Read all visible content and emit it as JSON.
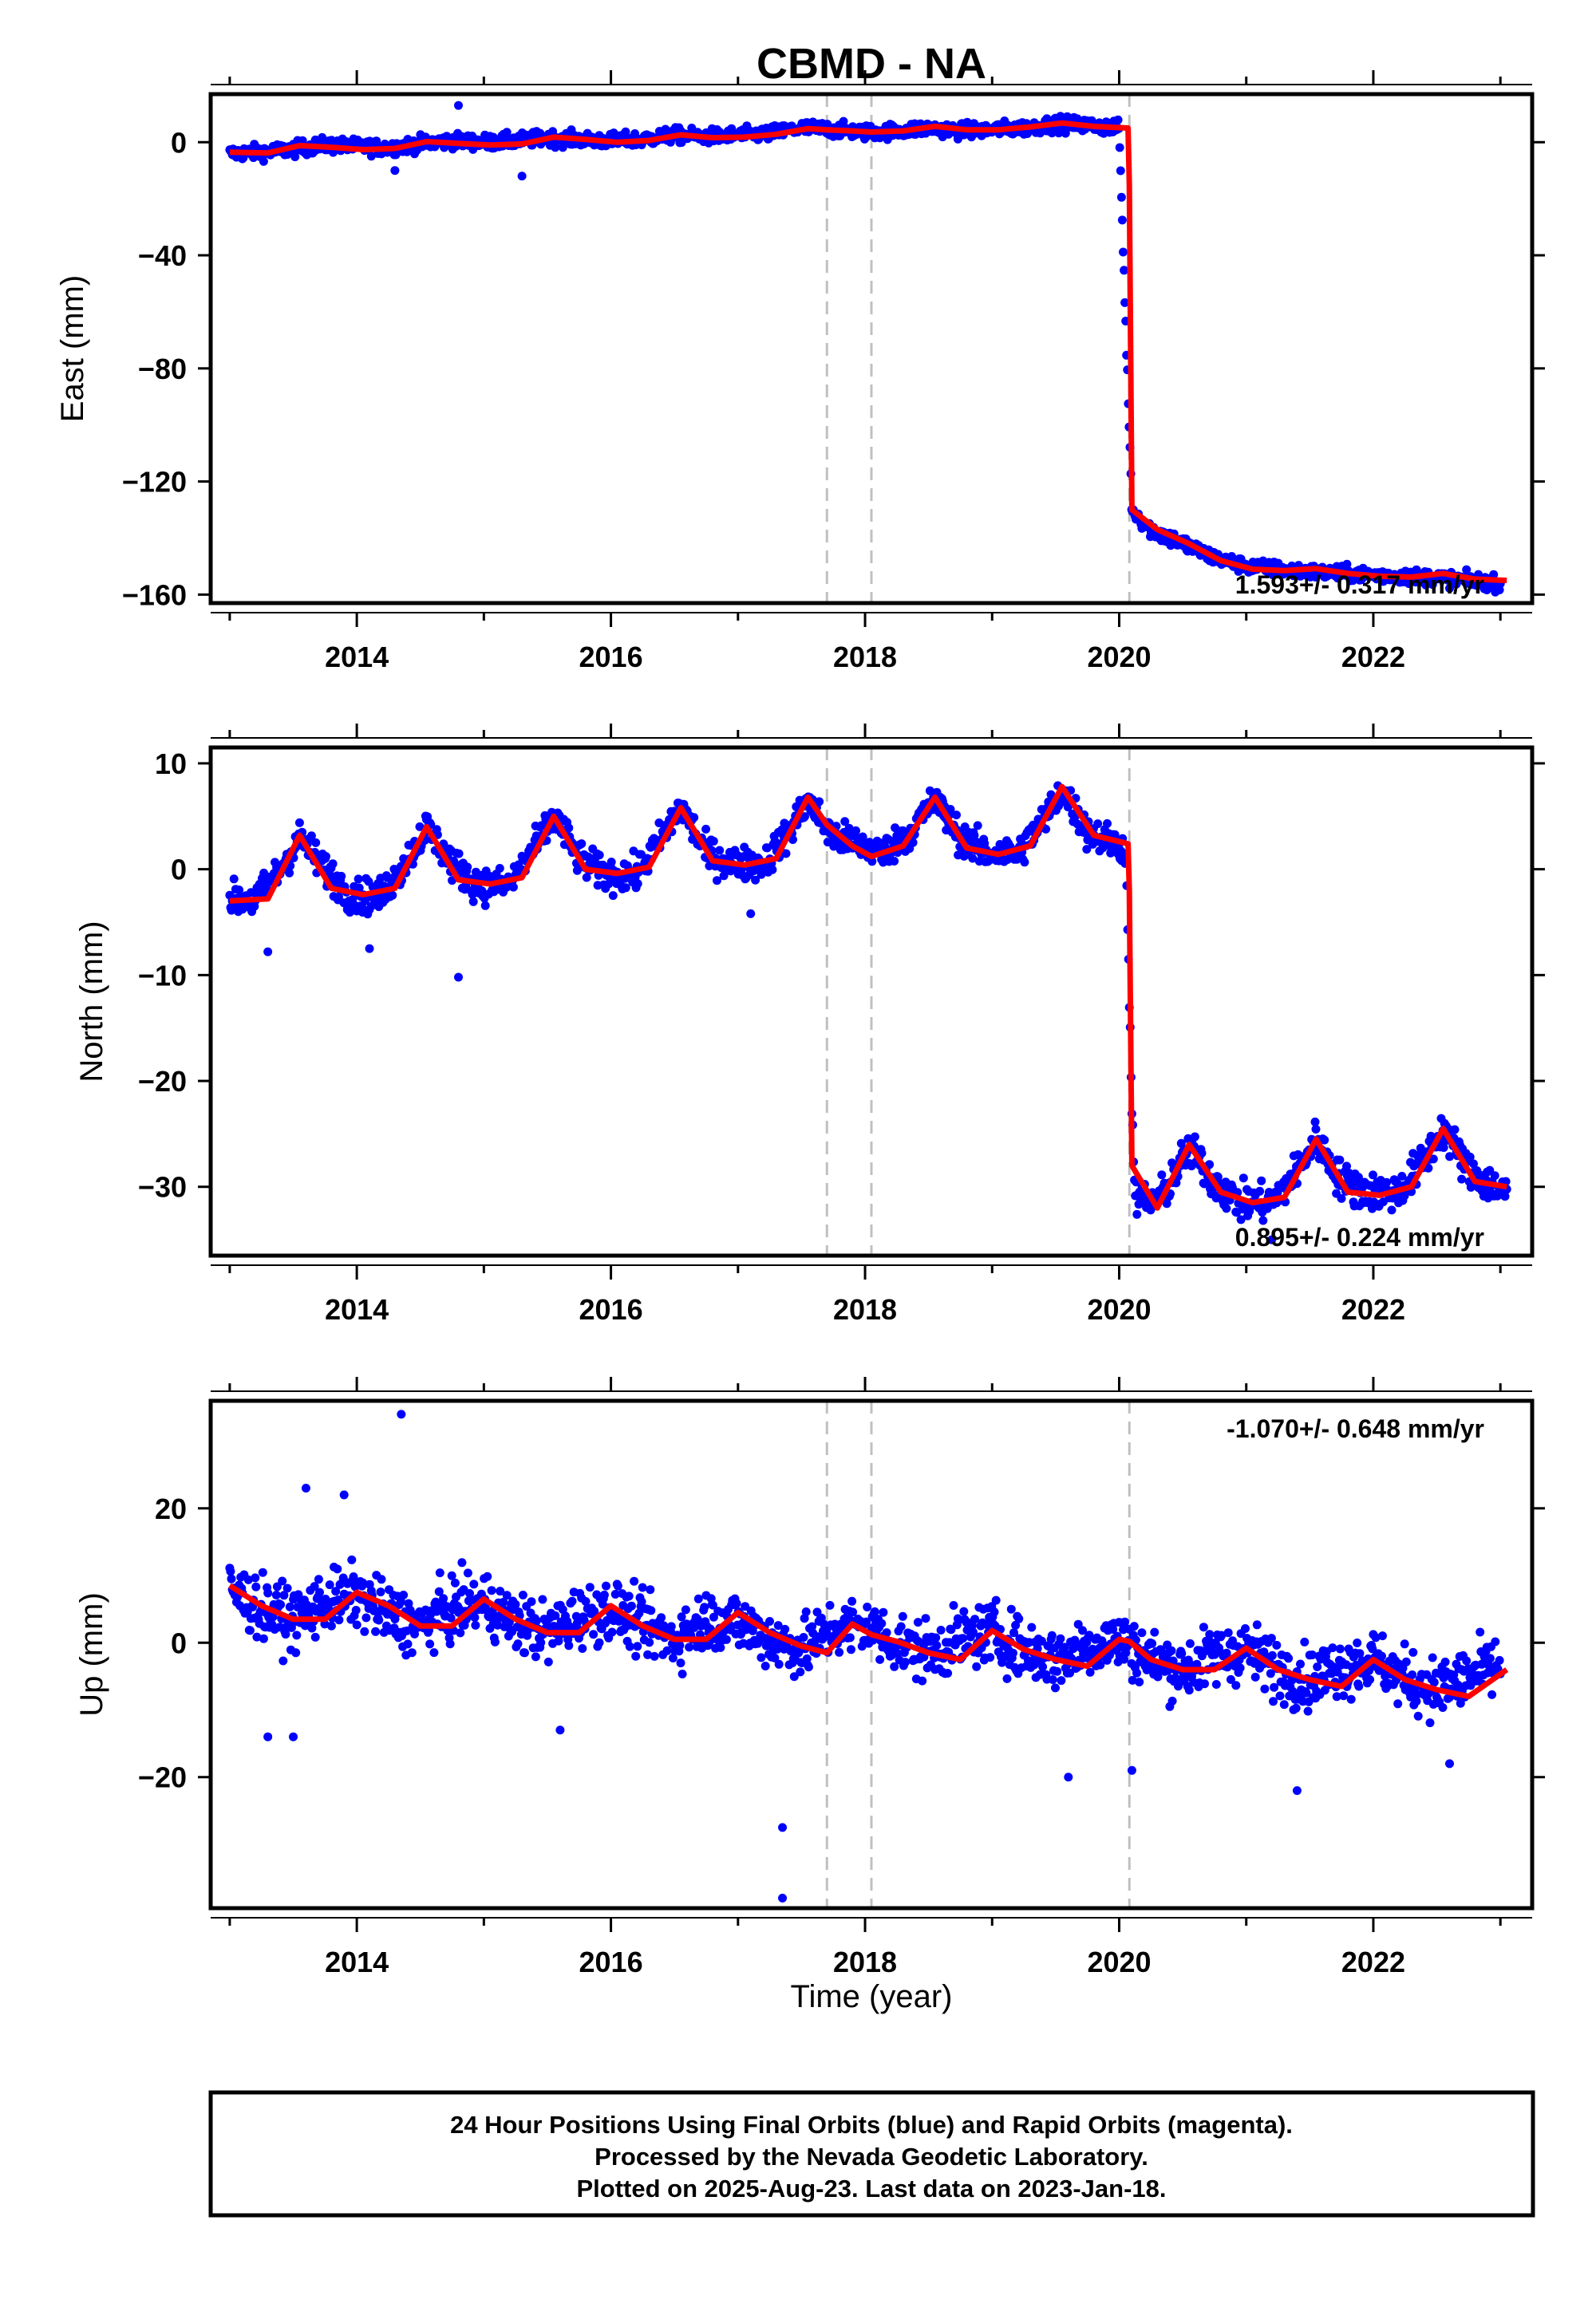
{
  "title": "CBMD - NA",
  "x_label": "Time (year)",
  "caption": [
    "24 Hour Positions Using Final Orbits (blue) and Rapid Orbits (magenta).",
    "Processed by the Nevada Geodetic Laboratory.",
    "Plotted on 2025-Aug-23. Last data on 2023-Jan-18."
  ],
  "colors": {
    "final_points": "#0000ff",
    "model_line": "#ff0000",
    "event_lines": "#c0c0c0",
    "frame": "#000000"
  },
  "chart_data": [
    {
      "type": "scatter",
      "component": "east",
      "ylabel": "East (mm)",
      "xlim": [
        2012.85,
        2023.25
      ],
      "ylim": [
        -163,
        17
      ],
      "x_ticks": [
        2014,
        2016,
        2018,
        2020,
        2022
      ],
      "y_ticks": [
        0,
        -40,
        -80,
        -120,
        -160
      ],
      "x_tick_labels": [
        "2014",
        "2016",
        "2018",
        "2020",
        "2022"
      ],
      "y_tick_labels": [
        "0",
        "−40",
        "−80",
        "−120",
        "−160"
      ],
      "event_lines_x": [
        2017.7,
        2018.05,
        2020.08
      ],
      "rate_text": "1.593+/- 0.317 mm/yr",
      "rate_position": "bottom-right",
      "series": [
        {
          "role": "final-orbit-points",
          "x": [
            2013.0,
            2013.25,
            2013.5,
            2013.75,
            2014.0,
            2014.25,
            2014.5,
            2014.75,
            2015.0,
            2015.25,
            2015.5,
            2015.75,
            2016.0,
            2016.25,
            2016.5,
            2016.75,
            2017.0,
            2017.25,
            2017.5,
            2017.75,
            2018.0,
            2018.25,
            2018.5,
            2018.75,
            2019.0,
            2019.25,
            2019.5,
            2019.75,
            2020.0,
            2020.1,
            2020.25,
            2020.5,
            2020.75,
            2021.0,
            2021.25,
            2021.5,
            2021.75,
            2022.0,
            2022.25,
            2022.5,
            2022.75,
            2023.0
          ],
          "y": [
            -4,
            -3.5,
            -2.5,
            -1,
            -1.5,
            -2,
            -0.5,
            0.5,
            0,
            0.5,
            1.5,
            1,
            0.5,
            1,
            2.5,
            2,
            2.5,
            3,
            5,
            4.5,
            3.5,
            4,
            5,
            4,
            4.5,
            5,
            6.5,
            6,
            5,
            -130,
            -137,
            -142,
            -147,
            -150,
            -151,
            -152,
            -152.5,
            -153,
            -153.5,
            -154,
            -155,
            -156
          ],
          "spread": [
            2.6,
            2.6,
            2.6,
            2.6,
            2.6,
            2.6,
            2.6,
            2.6,
            2.6,
            2.6,
            2.6,
            2.6,
            2.6,
            2.6,
            2.6,
            2.6,
            2.6,
            2.6,
            2.6,
            2.6,
            2.6,
            2.6,
            2.6,
            2.6,
            2.6,
            2.6,
            2.6,
            2.6,
            2.6,
            3,
            3,
            3,
            2.6,
            2.6,
            2.6,
            2.6,
            2.6,
            2.6,
            2.6,
            2.6,
            2.6,
            2.6
          ],
          "outliers": [
            [
              2014.8,
              13
            ],
            [
              2015.3,
              -12
            ],
            [
              2014.3,
              -10
            ]
          ]
        },
        {
          "role": "model-line",
          "x": [
            2013.0,
            2013.3,
            2013.55,
            2013.8,
            2014.05,
            2014.3,
            2014.55,
            2014.8,
            2015.05,
            2015.3,
            2015.55,
            2015.8,
            2016.05,
            2016.3,
            2016.55,
            2016.8,
            2017.05,
            2017.3,
            2017.55,
            2017.7,
            2017.9,
            2018.05,
            2018.3,
            2018.55,
            2018.8,
            2019.05,
            2019.3,
            2019.55,
            2019.8,
            2020.07,
            2020.08,
            2020.1,
            2020.3,
            2020.55,
            2020.8,
            2021.05,
            2021.3,
            2021.55,
            2021.8,
            2022.05,
            2022.3,
            2022.55,
            2022.8,
            2023.05
          ],
          "y": [
            -3.5,
            -3.8,
            -1.2,
            -1.8,
            -2.6,
            -2.2,
            0.2,
            -0.4,
            -1,
            -0.6,
            1.8,
            1,
            0,
            0.6,
            2.6,
            1.6,
            1.8,
            2.8,
            4.8,
            4.4,
            4,
            3.6,
            4,
            5.6,
            4.4,
            4.4,
            5.4,
            6.8,
            5.6,
            5,
            -15,
            -130,
            -137,
            -142,
            -148,
            -151,
            -151.5,
            -150.8,
            -152.5,
            -153.5,
            -153.8,
            -152.5,
            -154.5,
            -155
          ]
        }
      ]
    },
    {
      "type": "scatter",
      "component": "north",
      "ylabel": "North (mm)",
      "xlim": [
        2012.85,
        2023.25
      ],
      "ylim": [
        -36.5,
        11.5
      ],
      "x_ticks": [
        2014,
        2016,
        2018,
        2020,
        2022
      ],
      "y_ticks": [
        10,
        0,
        -10,
        -20,
        -30
      ],
      "x_tick_labels": [
        "2014",
        "2016",
        "2018",
        "2020",
        "2022"
      ],
      "y_tick_labels": [
        "10",
        "0",
        "−10",
        "−20",
        "−30"
      ],
      "event_lines_x": [
        2017.7,
        2018.05,
        2020.08
      ],
      "rate_text": "0.895+/- 0.224 mm/yr",
      "rate_position": "bottom-right",
      "series": [
        {
          "role": "final-orbit-points",
          "x": [
            2013.0,
            2013.2,
            2013.4,
            2013.55,
            2013.75,
            2013.95,
            2014.2,
            2014.4,
            2014.55,
            2014.75,
            2014.95,
            2015.2,
            2015.4,
            2015.55,
            2015.75,
            2015.95,
            2016.2,
            2016.4,
            2016.55,
            2016.75,
            2016.95,
            2017.2,
            2017.4,
            2017.55,
            2017.75,
            2017.95,
            2018.15,
            2018.35,
            2018.55,
            2018.75,
            2018.95,
            2019.2,
            2019.4,
            2019.55,
            2019.75,
            2019.95,
            2020.05,
            2020.12,
            2020.3,
            2020.55,
            2020.75,
            2020.95,
            2021.2,
            2021.4,
            2021.55,
            2021.75,
            2021.95,
            2022.2,
            2022.4,
            2022.55,
            2022.75,
            2022.95,
            2023.05
          ],
          "y": [
            -2.8,
            -3,
            0,
            3,
            0,
            -2.5,
            -2.5,
            1,
            4,
            0.5,
            -1.5,
            -1.5,
            2,
            5,
            1,
            -0.5,
            -0.5,
            3,
            6,
            1.5,
            0.5,
            0.5,
            3.5,
            6.5,
            3,
            2.5,
            1.5,
            3.5,
            6.5,
            3,
            1.5,
            1.5,
            4.5,
            7.5,
            3.5,
            2.5,
            2,
            -31,
            -31.5,
            -26.5,
            -29.5,
            -31.5,
            -31.5,
            -28.5,
            -25.5,
            -29.5,
            -30.5,
            -30.5,
            -27.5,
            -24.5,
            -28.5,
            -30,
            -30.5
          ],
          "spread": [
            1.6,
            1.6,
            1.6,
            1.6,
            1.6,
            1.6,
            1.6,
            1.6,
            1.6,
            1.6,
            1.6,
            1.6,
            1.6,
            1.6,
            1.6,
            1.6,
            1.6,
            1.6,
            1.6,
            1.6,
            1.6,
            1.6,
            1.6,
            1.6,
            1.6,
            1.6,
            1.6,
            1.6,
            1.6,
            1.6,
            1.6,
            1.6,
            1.6,
            1.6,
            1.6,
            1.6,
            1.6,
            1.8,
            1.8,
            1.8,
            1.8,
            1.8,
            1.8,
            1.8,
            1.8,
            1.8,
            1.8,
            1.8,
            1.8,
            1.8,
            1.8,
            1.8,
            1.8
          ],
          "outliers": [
            [
              2014.8,
              -10.2
            ],
            [
              2013.3,
              -7.8
            ],
            [
              2014.1,
              -7.5
            ],
            [
              2017.1,
              -4.2
            ],
            [
              2021.2,
              -35
            ]
          ]
        },
        {
          "role": "model-line",
          "x": [
            2013.0,
            2013.3,
            2013.55,
            2013.8,
            2014.05,
            2014.3,
            2014.55,
            2014.8,
            2015.05,
            2015.3,
            2015.55,
            2015.8,
            2016.05,
            2016.3,
            2016.55,
            2016.8,
            2017.05,
            2017.3,
            2017.55,
            2017.7,
            2017.9,
            2018.05,
            2018.3,
            2018.55,
            2018.8,
            2019.05,
            2019.3,
            2019.55,
            2019.8,
            2020.07,
            2020.08,
            2020.1,
            2020.3,
            2020.55,
            2020.8,
            2021.05,
            2021.3,
            2021.55,
            2021.8,
            2022.05,
            2022.3,
            2022.55,
            2022.8,
            2023.05
          ],
          "y": [
            -3,
            -2.8,
            3.2,
            -1.8,
            -2.4,
            -1.8,
            4,
            -1,
            -1.4,
            -0.8,
            5,
            0,
            -0.4,
            0.2,
            5.8,
            0.8,
            0.4,
            1,
            6.8,
            4.2,
            2.2,
            1.2,
            2.2,
            6.8,
            2,
            1.4,
            2.2,
            7.8,
            3.2,
            2.4,
            -2,
            -28,
            -32,
            -26,
            -30.5,
            -31.5,
            -31,
            -25.5,
            -30.5,
            -30.8,
            -30,
            -24.5,
            -29.5,
            -30
          ]
        }
      ]
    },
    {
      "type": "scatter",
      "component": "up",
      "ylabel": "Up (mm)",
      "xlim": [
        2012.85,
        2023.25
      ],
      "ylim": [
        -39.5,
        36
      ],
      "x_ticks": [
        2014,
        2016,
        2018,
        2020,
        2022
      ],
      "y_ticks": [
        20,
        0,
        -20
      ],
      "x_tick_labels": [
        "2014",
        "2016",
        "2018",
        "2020",
        "2022"
      ],
      "y_tick_labels": [
        "20",
        "0",
        "−20"
      ],
      "event_lines_x": [
        2017.7,
        2018.05,
        2020.08
      ],
      "rate_text": "-1.070+/- 0.648 mm/yr",
      "rate_position": "top-right",
      "series": [
        {
          "role": "final-orbit-points",
          "x": [
            2013.0,
            2013.25,
            2013.5,
            2013.75,
            2014.0,
            2014.25,
            2014.5,
            2014.75,
            2015.0,
            2015.25,
            2015.5,
            2015.75,
            2016.0,
            2016.25,
            2016.5,
            2016.75,
            2017.0,
            2017.25,
            2017.5,
            2017.75,
            2018.0,
            2018.25,
            2018.5,
            2018.75,
            2019.0,
            2019.25,
            2019.5,
            2019.75,
            2020.0,
            2020.25,
            2020.5,
            2020.75,
            2021.0,
            2021.25,
            2021.5,
            2021.75,
            2022.0,
            2022.25,
            2022.5,
            2022.75,
            2023.0
          ],
          "y": [
            8,
            5,
            3.5,
            6,
            7,
            4,
            2.5,
            5,
            6,
            3,
            1.5,
            4,
            5,
            2.5,
            0.5,
            3.5,
            3,
            0.5,
            -1,
            2,
            2.5,
            0,
            -1.5,
            0.5,
            1.5,
            -1,
            -2.5,
            -0.5,
            0.5,
            -2.5,
            -4,
            -2,
            -1,
            -4,
            -5.5,
            -3.5,
            -2.5,
            -5.5,
            -7,
            -5,
            -3.5
          ],
          "spread": [
            4.5,
            4.5,
            4.5,
            4.5,
            4.5,
            4.5,
            4.5,
            4.5,
            4.5,
            4.5,
            4.5,
            4.5,
            4.5,
            4.5,
            4.5,
            4.5,
            4.5,
            4.5,
            4.5,
            4.5,
            4.5,
            4.5,
            4.5,
            4.5,
            4.5,
            4.5,
            4.5,
            4.5,
            4.5,
            4.5,
            4.5,
            4.5,
            4.5,
            4.5,
            4.5,
            4.5,
            4.5,
            4.5,
            4.5,
            4.5,
            4.5
          ],
          "outliers": [
            [
              2014.35,
              34
            ],
            [
              2017.35,
              -27.5
            ],
            [
              2017.35,
              -38
            ],
            [
              2013.6,
              23
            ],
            [
              2013.9,
              22
            ],
            [
              2013.3,
              -14
            ],
            [
              2013.5,
              -14
            ],
            [
              2015.6,
              -13
            ],
            [
              2019.6,
              -20
            ],
            [
              2020.1,
              -19
            ],
            [
              2021.4,
              -22
            ],
            [
              2022.6,
              -18
            ]
          ]
        },
        {
          "role": "model-line",
          "x": [
            2013.0,
            2013.25,
            2013.5,
            2013.75,
            2014.0,
            2014.25,
            2014.5,
            2014.75,
            2015.0,
            2015.25,
            2015.5,
            2015.75,
            2016.0,
            2016.25,
            2016.5,
            2016.75,
            2017.0,
            2017.25,
            2017.5,
            2017.7,
            2017.9,
            2018.05,
            2018.25,
            2018.5,
            2018.75,
            2019.0,
            2019.25,
            2019.5,
            2019.75,
            2020.0,
            2020.08,
            2020.25,
            2020.5,
            2020.75,
            2021.0,
            2021.25,
            2021.5,
            2021.75,
            2022.0,
            2022.25,
            2022.5,
            2022.75,
            2023.05
          ],
          "y": [
            8.5,
            5.5,
            3.5,
            3.5,
            7.5,
            5.5,
            2.5,
            2.5,
            6.5,
            3.5,
            1.5,
            1.5,
            5.5,
            2.5,
            0.5,
            0.5,
            4.5,
            1.5,
            -0.5,
            -1.5,
            2.8,
            1.2,
            0.2,
            -1.5,
            -2.5,
            1.8,
            -1,
            -2.5,
            -3.5,
            0.5,
            0.2,
            -2.5,
            -4,
            -4,
            -0.8,
            -4,
            -5.5,
            -6.5,
            -2.5,
            -5.5,
            -7,
            -8,
            -4
          ]
        }
      ]
    }
  ]
}
